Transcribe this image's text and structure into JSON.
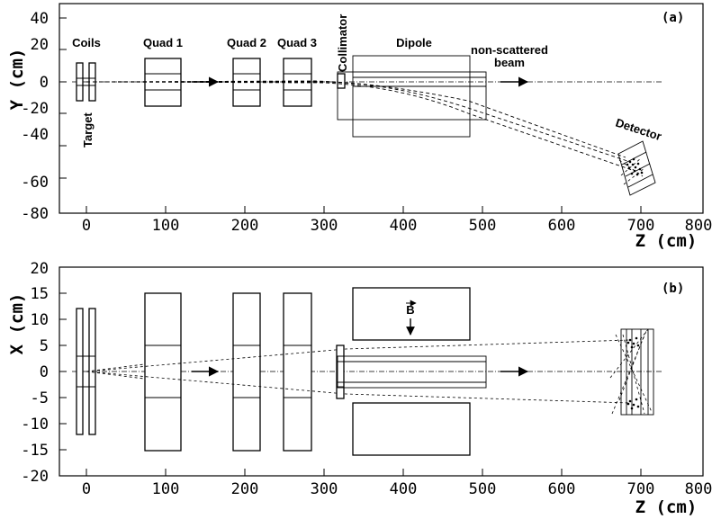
{
  "panel_a": {
    "label": "(a)",
    "y_title": "Y (cm)",
    "z_title": "Z (cm)",
    "y_ticks": [
      "40",
      "20",
      "0",
      "-20",
      "-40",
      "-60",
      "-80"
    ],
    "z_ticks": [
      "0",
      "100",
      "200",
      "300",
      "400",
      "500",
      "600",
      "700",
      "800"
    ],
    "labels": {
      "coils": "Coils",
      "target": "Target",
      "quad1": "Quad 1",
      "quad2": "Quad 2",
      "quad3": "Quad 3",
      "collimator": "Collimator",
      "dipole": "Dipole",
      "beam_line1": "non-scattered",
      "beam_line2": "beam",
      "detector": "Detector"
    }
  },
  "panel_b": {
    "label": "(b)",
    "x_title": "X (cm)",
    "z_title": "Z (cm)",
    "x_ticks": [
      "20",
      "15",
      "10",
      "5",
      "0",
      "-5",
      "-10",
      "-15",
      "-20"
    ],
    "z_ticks": [
      "0",
      "100",
      "200",
      "300",
      "400",
      "500",
      "600",
      "700",
      "800"
    ],
    "field_label": "B"
  }
}
